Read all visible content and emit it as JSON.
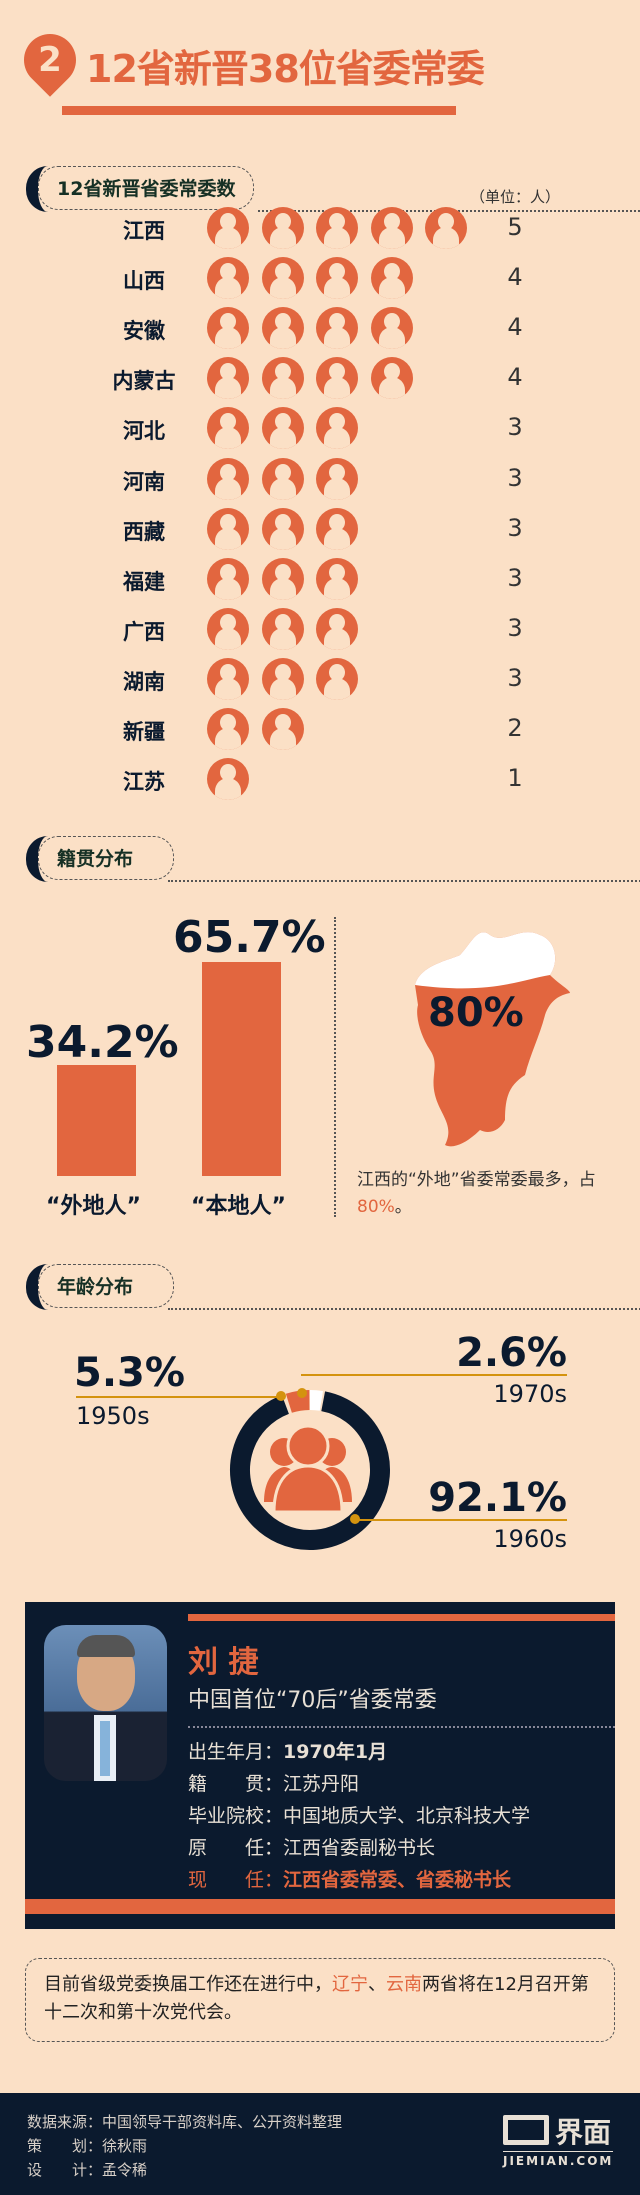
{
  "header": {
    "number": "2",
    "title": "12省新晋38位省委常委"
  },
  "sections": {
    "count": "12省新晋省委常委数",
    "origin": "籍贯分布",
    "age": "年龄分布"
  },
  "chart_data": [
    {
      "type": "bar",
      "title": "12省新晋省委常委数",
      "unit_label": "（单位：人）",
      "categories": [
        "江西",
        "山西",
        "安徽",
        "内蒙古",
        "河北",
        "河南",
        "西藏",
        "福建",
        "广西",
        "湖南",
        "新疆",
        "江苏"
      ],
      "values": [
        5,
        4,
        4,
        4,
        3,
        3,
        3,
        3,
        3,
        3,
        2,
        1
      ]
    },
    {
      "type": "bar",
      "title": "籍贯分布",
      "categories": [
        "“外地人”",
        "“本地人”"
      ],
      "values": [
        34.2,
        65.7
      ],
      "value_labels": [
        "34.2%",
        "65.7%"
      ]
    },
    {
      "type": "pie",
      "title": "年龄分布",
      "categories": [
        "1950s",
        "1960s",
        "1970s"
      ],
      "values": [
        5.3,
        92.1,
        2.6
      ],
      "value_labels": [
        "5.3%",
        "92.1%",
        "2.6%"
      ],
      "colors": [
        "#e2663f",
        "#0b1a2e",
        "#ffffff"
      ]
    }
  ],
  "map": {
    "value": "80%",
    "caption_a": "江西的“外地”省委常委最多，占",
    "caption_b": "80%",
    "caption_c": "。"
  },
  "profile": {
    "name": "刘 捷",
    "subtitle": "中国首位“70后”省委常委",
    "rows": [
      {
        "k": "出生年月：",
        "v": "1970年1月"
      },
      {
        "k": "籍　　贯：",
        "v": "江苏丹阳"
      },
      {
        "k": "毕业院校：",
        "v": "中国地质大学、北京科技大学"
      },
      {
        "k": "原　　任：",
        "v": "江西省委副秘书长"
      },
      {
        "k": "现　　任：",
        "v": "江西省委常委、省委秘书长"
      }
    ]
  },
  "note": {
    "a": "目前省级党委换届工作还在进行中，",
    "b": "辽宁",
    "c": "、",
    "d": "云南",
    "e": "两省将在12月召开第十二次和第十次党代会。"
  },
  "footer": {
    "source": "数据来源：中国领导干部资料库、公开资料整理",
    "planner": "策　　划：徐秋雨",
    "designer": "设　　计：孟令稀",
    "logo": "界面",
    "logo_sub": "JIEMIAN.COM"
  },
  "colors": {
    "accent": "#e2663f",
    "navy": "#0b1a2e",
    "bg": "#fbe0c6",
    "gold": "#d4930f"
  }
}
